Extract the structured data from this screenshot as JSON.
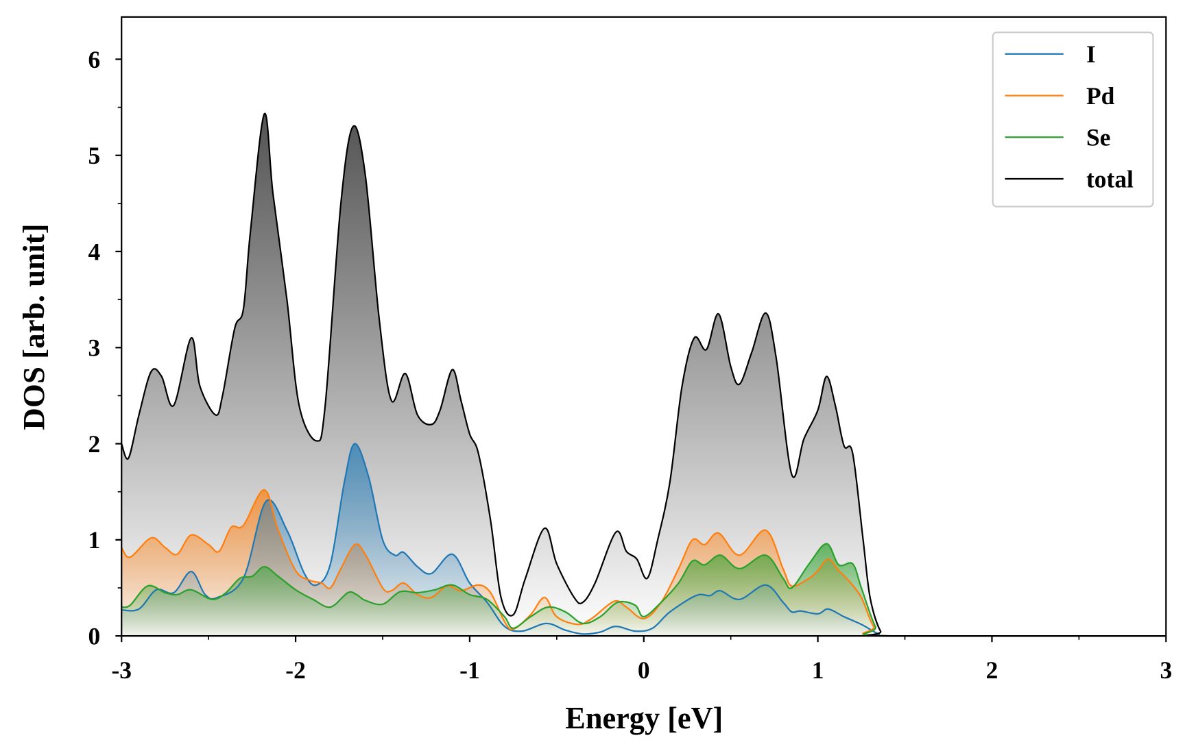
{
  "chart_data": {
    "type": "line",
    "title": "",
    "xlabel": "Energy [eV]",
    "ylabel": "DOS [arb. unit]",
    "xlim": [
      -3,
      3
    ],
    "ylim": [
      0,
      6.44
    ],
    "xticks": [
      -3,
      -2,
      -1,
      0,
      1,
      2,
      3
    ],
    "yticks": [
      0,
      1,
      2,
      3,
      4,
      5,
      6
    ],
    "grid": false,
    "legend_position": "top-right",
    "series": [
      {
        "name": "I",
        "color": "#1f77b4",
        "fill": true,
        "points": [
          [
            -3,
            0.27
          ],
          [
            -2.9,
            0.28
          ],
          [
            -2.8,
            0.48
          ],
          [
            -2.7,
            0.45
          ],
          [
            -2.6,
            0.67
          ],
          [
            -2.52,
            0.43
          ],
          [
            -2.45,
            0.4
          ],
          [
            -2.3,
            0.6
          ],
          [
            -2.17,
            1.4
          ],
          [
            -2.05,
            1.1
          ],
          [
            -1.95,
            0.65
          ],
          [
            -1.88,
            0.53
          ],
          [
            -1.8,
            0.75
          ],
          [
            -1.72,
            1.6
          ],
          [
            -1.66,
            2.0
          ],
          [
            -1.58,
            1.65
          ],
          [
            -1.5,
            1.0
          ],
          [
            -1.43,
            0.84
          ],
          [
            -1.38,
            0.87
          ],
          [
            -1.3,
            0.72
          ],
          [
            -1.22,
            0.65
          ],
          [
            -1.1,
            0.85
          ],
          [
            -1.0,
            0.55
          ],
          [
            -0.9,
            0.35
          ],
          [
            -0.8,
            0.1
          ],
          [
            -0.7,
            0.05
          ],
          [
            -0.56,
            0.13
          ],
          [
            -0.45,
            0.06
          ],
          [
            -0.35,
            0.02
          ],
          [
            -0.25,
            0.04
          ],
          [
            -0.16,
            0.1
          ],
          [
            -0.05,
            0.05
          ],
          [
            0.05,
            0.08
          ],
          [
            0.15,
            0.25
          ],
          [
            0.3,
            0.42
          ],
          [
            0.38,
            0.42
          ],
          [
            0.44,
            0.47
          ],
          [
            0.55,
            0.38
          ],
          [
            0.7,
            0.53
          ],
          [
            0.8,
            0.35
          ],
          [
            0.85,
            0.25
          ],
          [
            0.9,
            0.26
          ],
          [
            1.0,
            0.23
          ],
          [
            1.06,
            0.28
          ],
          [
            1.15,
            0.2
          ],
          [
            1.25,
            0.12
          ],
          [
            1.35,
            0.02
          ],
          [
            1.42,
            0
          ],
          [
            3,
            0
          ]
        ]
      },
      {
        "name": "Pd",
        "color": "#ff7f0e",
        "fill": true,
        "points": [
          [
            -3,
            0.92
          ],
          [
            -2.95,
            0.82
          ],
          [
            -2.83,
            1.02
          ],
          [
            -2.75,
            0.92
          ],
          [
            -2.68,
            0.85
          ],
          [
            -2.6,
            1.05
          ],
          [
            -2.5,
            0.95
          ],
          [
            -2.44,
            0.88
          ],
          [
            -2.37,
            1.13
          ],
          [
            -2.3,
            1.15
          ],
          [
            -2.18,
            1.52
          ],
          [
            -2.1,
            1.1
          ],
          [
            -2.0,
            0.68
          ],
          [
            -1.92,
            0.58
          ],
          [
            -1.85,
            0.55
          ],
          [
            -1.8,
            0.5
          ],
          [
            -1.74,
            0.7
          ],
          [
            -1.66,
            0.95
          ],
          [
            -1.6,
            0.85
          ],
          [
            -1.5,
            0.5
          ],
          [
            -1.45,
            0.47
          ],
          [
            -1.38,
            0.55
          ],
          [
            -1.3,
            0.43
          ],
          [
            -1.22,
            0.4
          ],
          [
            -1.13,
            0.52
          ],
          [
            -1.05,
            0.47
          ],
          [
            -0.95,
            0.53
          ],
          [
            -0.88,
            0.45
          ],
          [
            -0.8,
            0.15
          ],
          [
            -0.75,
            0.07
          ],
          [
            -0.65,
            0.22
          ],
          [
            -0.57,
            0.4
          ],
          [
            -0.5,
            0.2
          ],
          [
            -0.38,
            0.12
          ],
          [
            -0.3,
            0.18
          ],
          [
            -0.17,
            0.36
          ],
          [
            -0.1,
            0.3
          ],
          [
            0.0,
            0.18
          ],
          [
            0.1,
            0.35
          ],
          [
            0.2,
            0.7
          ],
          [
            0.28,
            1.0
          ],
          [
            0.35,
            0.95
          ],
          [
            0.43,
            1.07
          ],
          [
            0.55,
            0.84
          ],
          [
            0.7,
            1.1
          ],
          [
            0.8,
            0.7
          ],
          [
            0.85,
            0.52
          ],
          [
            0.95,
            0.6
          ],
          [
            1.0,
            0.68
          ],
          [
            1.06,
            0.8
          ],
          [
            1.12,
            0.68
          ],
          [
            1.18,
            0.57
          ],
          [
            1.25,
            0.4
          ],
          [
            1.32,
            0.1
          ],
          [
            1.4,
            0
          ],
          [
            3,
            0
          ]
        ]
      },
      {
        "name": "Se",
        "color": "#2ca02c",
        "fill": true,
        "points": [
          [
            -3,
            0.3
          ],
          [
            -2.95,
            0.32
          ],
          [
            -2.85,
            0.52
          ],
          [
            -2.75,
            0.45
          ],
          [
            -2.68,
            0.43
          ],
          [
            -2.6,
            0.48
          ],
          [
            -2.48,
            0.38
          ],
          [
            -2.4,
            0.45
          ],
          [
            -2.32,
            0.6
          ],
          [
            -2.25,
            0.62
          ],
          [
            -2.18,
            0.72
          ],
          [
            -2.1,
            0.62
          ],
          [
            -2.0,
            0.48
          ],
          [
            -1.9,
            0.38
          ],
          [
            -1.8,
            0.3
          ],
          [
            -1.7,
            0.45
          ],
          [
            -1.65,
            0.43
          ],
          [
            -1.6,
            0.37
          ],
          [
            -1.5,
            0.33
          ],
          [
            -1.4,
            0.46
          ],
          [
            -1.3,
            0.45
          ],
          [
            -1.2,
            0.48
          ],
          [
            -1.1,
            0.53
          ],
          [
            -1.0,
            0.43
          ],
          [
            -0.9,
            0.38
          ],
          [
            -0.8,
            0.2
          ],
          [
            -0.75,
            0.08
          ],
          [
            -0.65,
            0.2
          ],
          [
            -0.55,
            0.3
          ],
          [
            -0.45,
            0.25
          ],
          [
            -0.35,
            0.13
          ],
          [
            -0.25,
            0.2
          ],
          [
            -0.15,
            0.35
          ],
          [
            -0.05,
            0.32
          ],
          [
            0.0,
            0.2
          ],
          [
            0.1,
            0.35
          ],
          [
            0.2,
            0.55
          ],
          [
            0.28,
            0.78
          ],
          [
            0.35,
            0.74
          ],
          [
            0.44,
            0.84
          ],
          [
            0.55,
            0.7
          ],
          [
            0.7,
            0.84
          ],
          [
            0.8,
            0.6
          ],
          [
            0.85,
            0.5
          ],
          [
            0.95,
            0.75
          ],
          [
            1.05,
            0.96
          ],
          [
            1.12,
            0.74
          ],
          [
            1.2,
            0.75
          ],
          [
            1.25,
            0.5
          ],
          [
            1.33,
            0.1
          ],
          [
            1.4,
            0
          ],
          [
            3,
            0
          ]
        ]
      },
      {
        "name": "total",
        "color": "#000000",
        "fill": true,
        "points": [
          [
            -3,
            2.0
          ],
          [
            -2.96,
            1.85
          ],
          [
            -2.9,
            2.3
          ],
          [
            -2.83,
            2.75
          ],
          [
            -2.77,
            2.7
          ],
          [
            -2.7,
            2.4
          ],
          [
            -2.6,
            3.1
          ],
          [
            -2.55,
            2.6
          ],
          [
            -2.46,
            2.3
          ],
          [
            -2.42,
            2.5
          ],
          [
            -2.35,
            3.2
          ],
          [
            -2.3,
            3.4
          ],
          [
            -2.26,
            4.2
          ],
          [
            -2.18,
            5.43
          ],
          [
            -2.13,
            4.6
          ],
          [
            -2.05,
            3.5
          ],
          [
            -1.98,
            2.4
          ],
          [
            -1.88,
            2.03
          ],
          [
            -1.83,
            2.4
          ],
          [
            -1.74,
            4.5
          ],
          [
            -1.67,
            5.3
          ],
          [
            -1.6,
            4.8
          ],
          [
            -1.52,
            3.3
          ],
          [
            -1.45,
            2.45
          ],
          [
            -1.37,
            2.73
          ],
          [
            -1.3,
            2.3
          ],
          [
            -1.22,
            2.2
          ],
          [
            -1.17,
            2.35
          ],
          [
            -1.1,
            2.77
          ],
          [
            -1.05,
            2.45
          ],
          [
            -1.0,
            2.1
          ],
          [
            -0.95,
            1.9
          ],
          [
            -0.88,
            1.2
          ],
          [
            -0.82,
            0.4
          ],
          [
            -0.75,
            0.22
          ],
          [
            -0.68,
            0.6
          ],
          [
            -0.57,
            1.12
          ],
          [
            -0.5,
            0.75
          ],
          [
            -0.4,
            0.4
          ],
          [
            -0.35,
            0.35
          ],
          [
            -0.28,
            0.55
          ],
          [
            -0.16,
            1.08
          ],
          [
            -0.1,
            0.88
          ],
          [
            -0.04,
            0.8
          ],
          [
            0.02,
            0.6
          ],
          [
            0.08,
            1.0
          ],
          [
            0.15,
            1.6
          ],
          [
            0.22,
            2.6
          ],
          [
            0.29,
            3.1
          ],
          [
            0.36,
            2.98
          ],
          [
            0.43,
            3.35
          ],
          [
            0.5,
            2.8
          ],
          [
            0.55,
            2.62
          ],
          [
            0.62,
            2.95
          ],
          [
            0.7,
            3.36
          ],
          [
            0.76,
            2.9
          ],
          [
            0.85,
            1.68
          ],
          [
            0.92,
            2.05
          ],
          [
            1.0,
            2.35
          ],
          [
            1.05,
            2.7
          ],
          [
            1.1,
            2.4
          ],
          [
            1.15,
            1.98
          ],
          [
            1.2,
            1.9
          ],
          [
            1.26,
            1.0
          ],
          [
            1.3,
            0.4
          ],
          [
            1.36,
            0.05
          ],
          [
            1.42,
            0
          ],
          [
            3,
            0
          ]
        ]
      }
    ]
  }
}
